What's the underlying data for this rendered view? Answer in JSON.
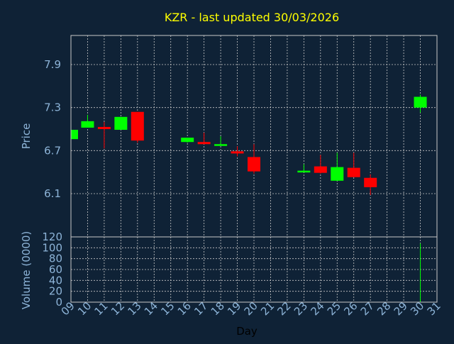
{
  "chart_data": {
    "type": "candlestick",
    "title": "KZR - last updated 30/03/2026",
    "xlabel": "Day",
    "colors": {
      "background": "#0f2236",
      "up": "#00ff00",
      "down": "#ff0000",
      "axis": "#8db4d8",
      "title": "#ffff00",
      "grid": "#c8c8c8"
    },
    "price_panel": {
      "ylabel": "Price",
      "ylim": [
        5.5,
        7.9
      ],
      "yticks": [
        6.1,
        6.7,
        7.3,
        7.9
      ],
      "grid": true
    },
    "volume_panel": {
      "ylabel": "Volume (0000)",
      "ylim": [
        0,
        120
      ],
      "yticks": [
        0,
        20,
        40,
        60,
        80,
        100,
        120
      ],
      "grid": true
    },
    "x_ticks": [
      "09",
      "10",
      "11",
      "12",
      "13",
      "14",
      "15",
      "16",
      "17",
      "18",
      "19",
      "20",
      "21",
      "22",
      "23",
      "24",
      "25",
      "26",
      "27",
      "28",
      "29",
      "30",
      "31"
    ],
    "candles": [
      {
        "day": "09",
        "open": 6.86,
        "high": 6.99,
        "low": 6.86,
        "close": 6.99
      },
      {
        "day": "10",
        "open": 7.02,
        "high": 7.2,
        "low": 7.02,
        "close": 7.11
      },
      {
        "day": "11",
        "open": 7.03,
        "high": 7.1,
        "low": 6.73,
        "close": 7.0
      },
      {
        "day": "12",
        "open": 6.99,
        "high": 7.17,
        "low": 6.99,
        "close": 7.17
      },
      {
        "day": "13",
        "open": 7.24,
        "high": 7.24,
        "low": 6.81,
        "close": 6.84
      },
      {
        "day": "16",
        "open": 6.82,
        "high": 6.88,
        "low": 6.81,
        "close": 6.88
      },
      {
        "day": "17",
        "open": 6.82,
        "high": 6.95,
        "low": 6.79,
        "close": 6.79
      },
      {
        "day": "18",
        "open": 6.77,
        "high": 6.9,
        "low": 6.77,
        "close": 6.79
      },
      {
        "day": "19",
        "open": 6.69,
        "high": 6.76,
        "low": 6.62,
        "close": 6.66
      },
      {
        "day": "20",
        "open": 6.61,
        "high": 6.79,
        "low": 6.38,
        "close": 6.41
      },
      {
        "day": "23",
        "open": 6.4,
        "high": 6.51,
        "low": 6.4,
        "close": 6.42
      },
      {
        "day": "24",
        "open": 6.48,
        "high": 6.64,
        "low": 6.38,
        "close": 6.39
      },
      {
        "day": "25",
        "open": 6.28,
        "high": 6.67,
        "low": 6.28,
        "close": 6.47
      },
      {
        "day": "26",
        "open": 6.46,
        "high": 6.67,
        "low": 6.33,
        "close": 6.33
      },
      {
        "day": "27",
        "open": 6.32,
        "high": 6.37,
        "low": 6.08,
        "close": 6.19
      },
      {
        "day": "30",
        "open": 7.3,
        "high": 7.48,
        "low": 7.23,
        "close": 7.45
      }
    ],
    "volume": [
      {
        "day": "20",
        "value": 1
      },
      {
        "day": "30",
        "value": 108
      }
    ]
  }
}
